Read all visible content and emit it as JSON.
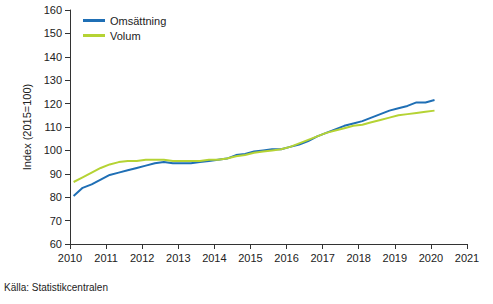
{
  "chart_data": {
    "type": "line",
    "y_label": "Index (2015=100)",
    "source": "Källa: Statistikcentralen",
    "x": [
      2010.1,
      2010.35,
      2010.6,
      2010.85,
      2011.1,
      2011.35,
      2011.6,
      2011.85,
      2012.1,
      2012.35,
      2012.6,
      2012.85,
      2013.1,
      2013.35,
      2013.6,
      2013.85,
      2014.1,
      2014.35,
      2014.6,
      2014.85,
      2015.1,
      2015.35,
      2015.6,
      2015.85,
      2016.1,
      2016.35,
      2016.6,
      2016.85,
      2017.1,
      2017.35,
      2017.6,
      2017.85,
      2018.1,
      2018.35,
      2018.6,
      2018.85,
      2019.1,
      2019.35,
      2019.6,
      2019.85,
      2020.1
    ],
    "series": [
      {
        "name": "Omsättning",
        "color": "#1f6fb5",
        "values": [
          80.5,
          84,
          85.5,
          87.5,
          89.5,
          90.5,
          91.5,
          92.5,
          93.5,
          94.5,
          95,
          94.5,
          94.5,
          94.5,
          95,
          95.5,
          96,
          96.5,
          98,
          98.5,
          99.5,
          100,
          100.5,
          100.5,
          101.5,
          102.5,
          104,
          106,
          107.5,
          109,
          110.5,
          111.5,
          112.5,
          114,
          115.5,
          117,
          118,
          119,
          120.5,
          120.5,
          121.5
        ]
      },
      {
        "name": "Volum",
        "color": "#b5d334",
        "values": [
          86.5,
          88.5,
          90.5,
          92.5,
          94,
          95,
          95.5,
          95.5,
          96,
          96,
          96,
          95.5,
          95.5,
          95.5,
          95.5,
          96,
          96,
          96.5,
          97.5,
          98,
          99,
          99.5,
          100,
          100.5,
          101.5,
          103,
          104.5,
          106,
          107.5,
          108.5,
          109.5,
          110.5,
          111,
          112,
          113,
          114,
          115,
          115.5,
          116,
          116.5,
          117
        ]
      }
    ],
    "xlim": [
      2010,
      2021
    ],
    "xticks": [
      2010,
      2011,
      2012,
      2013,
      2014,
      2015,
      2016,
      2017,
      2018,
      2019,
      2020,
      2021
    ],
    "ylim": [
      60,
      160
    ],
    "yticks": [
      60,
      70,
      80,
      90,
      100,
      110,
      120,
      130,
      140,
      150,
      160
    ],
    "grid": false,
    "legend": "upper left"
  }
}
